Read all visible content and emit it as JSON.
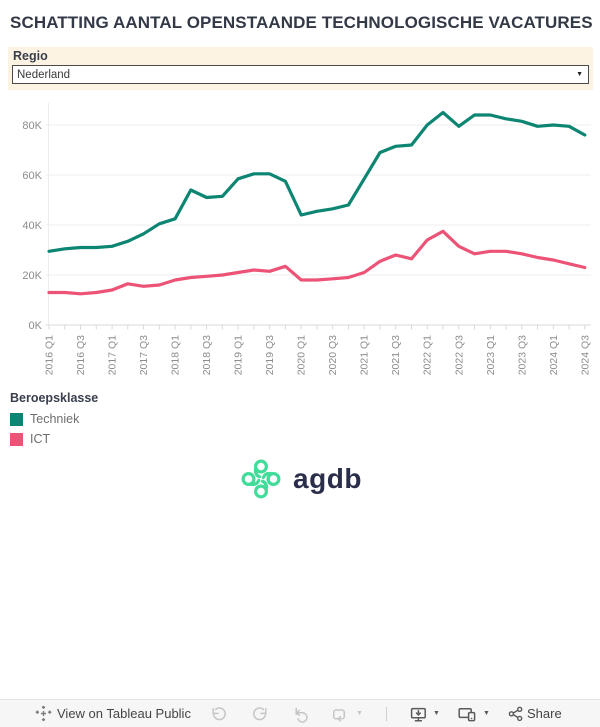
{
  "title": "SCHATTING AANTAL OPENSTAANDE TECHNOLOGISCHE VACATURES",
  "filter": {
    "label": "Regio",
    "value": "Nederland"
  },
  "chart_data": {
    "type": "line",
    "x": [
      "2016 Q1",
      "2016 Q2",
      "2016 Q3",
      "2016 Q4",
      "2017 Q1",
      "2017 Q2",
      "2017 Q3",
      "2017 Q4",
      "2018 Q1",
      "2018 Q2",
      "2018 Q3",
      "2018 Q4",
      "2019 Q1",
      "2019 Q2",
      "2019 Q3",
      "2019 Q4",
      "2020 Q1",
      "2020 Q2",
      "2020 Q3",
      "2020 Q4",
      "2021 Q1",
      "2021 Q2",
      "2021 Q3",
      "2021 Q4",
      "2022 Q1",
      "2022 Q2",
      "2022 Q3",
      "2022 Q4",
      "2023 Q1",
      "2023 Q2",
      "2023 Q3",
      "2023 Q4",
      "2024 Q1",
      "2024 Q2",
      "2024 Q3"
    ],
    "x_label_every": 2,
    "series": [
      {
        "name": "Techniek",
        "color": "#0c8573",
        "values": [
          29.5,
          30.5,
          31,
          31,
          31.5,
          33.5,
          36.5,
          40.5,
          42.5,
          54,
          51,
          51.5,
          58.5,
          60.5,
          60.5,
          57.5,
          44,
          45.5,
          46.5,
          48,
          58.5,
          69,
          71.5,
          72,
          80,
          85,
          79.5,
          84,
          84,
          82.5,
          81.5,
          79.5,
          80,
          79.5,
          76
        ]
      },
      {
        "name": "ICT",
        "color": "#ec5377",
        "values": [
          13,
          13,
          12.5,
          13,
          14,
          16.5,
          15.5,
          16,
          18,
          19,
          19.5,
          20,
          21,
          22,
          21.5,
          23.5,
          18,
          18,
          18.5,
          19,
          21,
          25.5,
          28,
          26.5,
          34,
          37.5,
          31.5,
          28.5,
          29.5,
          29.5,
          28.5,
          27,
          26,
          24.5,
          23
        ]
      }
    ],
    "values_unit": "thousands",
    "yticks": [
      0,
      20,
      40,
      60,
      80
    ],
    "ytick_suffix": "K",
    "ylim": [
      0,
      90
    ],
    "grid": true,
    "legend_title": "Beroepsklasse",
    "legend_position": "bottom-left"
  },
  "legend": {
    "title": "Beroepsklasse",
    "items": [
      {
        "label": "Techniek",
        "color": "#0c8573"
      },
      {
        "label": "ICT",
        "color": "#ec5377"
      }
    ]
  },
  "logo": {
    "text": "agdb",
    "icon": "agdb-pinwheel-icon",
    "mint": "#42dc9a",
    "navy": "#2b2e4a"
  },
  "toolbar": {
    "view_label": "View on Tableau Public",
    "share_label": "Share",
    "icons": [
      "tableau-logo-icon",
      "undo-icon",
      "redo-icon",
      "reset-icon",
      "refresh-icon",
      "caret-down-icon",
      "download-icon",
      "device-layouts-icon",
      "caret-down-icon",
      "share-icon"
    ]
  },
  "colors": {
    "techniek": "#0c8573",
    "ict": "#ec5377",
    "filter_bg": "#fcf3e2",
    "title_text": "#333947",
    "axis_text": "#8c8c8c",
    "legend_text": "#6e6e6e",
    "gridline": "#ececec",
    "toolbar_bg": "#f6f6f6"
  }
}
